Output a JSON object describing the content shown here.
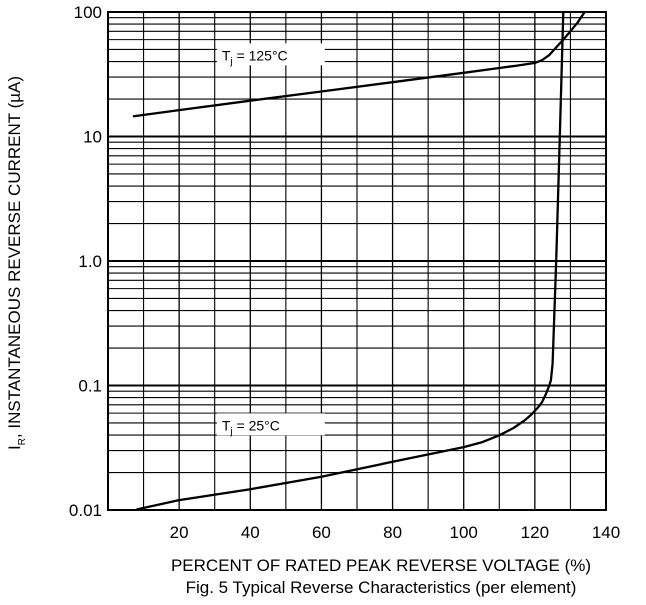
{
  "chart_data": {
    "type": "line",
    "title": "Fig. 5  Typical Reverse Characteristics (per element)",
    "xlabel": "PERCENT OF RATED PEAK  REVERSE VOLTAGE (%)",
    "ylabel_main": "I",
    "ylabel_sub": "R",
    "ylabel_rest": ", INSTANTANEOUS REVERSE CURRENT (µA)",
    "xlim": [
      0,
      140
    ],
    "ylim": [
      0.01,
      100
    ],
    "y_scale": "log",
    "grid": true,
    "x_ticks": [
      20,
      40,
      60,
      80,
      100,
      120,
      140
    ],
    "y_ticks": [
      {
        "value": 0.01,
        "label": "0.01"
      },
      {
        "value": 0.1,
        "label": "0.1"
      },
      {
        "value": 1,
        "label": "1.0"
      },
      {
        "value": 10,
        "label": "10"
      },
      {
        "value": 100,
        "label": "100"
      }
    ],
    "series": [
      {
        "label_main": "T",
        "label_sub": "j",
        "label_rest": " = 125°C",
        "label_at": [
          32,
          44
        ],
        "x": [
          7,
          20,
          40,
          60,
          80,
          100,
          110,
          115,
          118,
          120,
          122,
          124,
          126,
          128,
          130,
          132,
          134
        ],
        "y": [
          14.5,
          16.3,
          19.4,
          23,
          27.3,
          32.5,
          35.5,
          37.1,
          38.2,
          39,
          41,
          45,
          52,
          60,
          70,
          82,
          100
        ]
      },
      {
        "label_main": "T",
        "label_sub": "j",
        "label_rest": " = 25°C",
        "label_at": [
          32,
          0.047
        ],
        "x": [
          8,
          20,
          40,
          60,
          80,
          100,
          105,
          110,
          114,
          117,
          119,
          121,
          122,
          123,
          124,
          124.5,
          125,
          126,
          127,
          128
        ],
        "y": [
          0.0101,
          0.012,
          0.0147,
          0.0185,
          0.0244,
          0.032,
          0.0349,
          0.0398,
          0.0456,
          0.0522,
          0.0584,
          0.0672,
          0.0734,
          0.084,
          0.099,
          0.11,
          0.15,
          1.0,
          10,
          100
        ]
      }
    ]
  }
}
